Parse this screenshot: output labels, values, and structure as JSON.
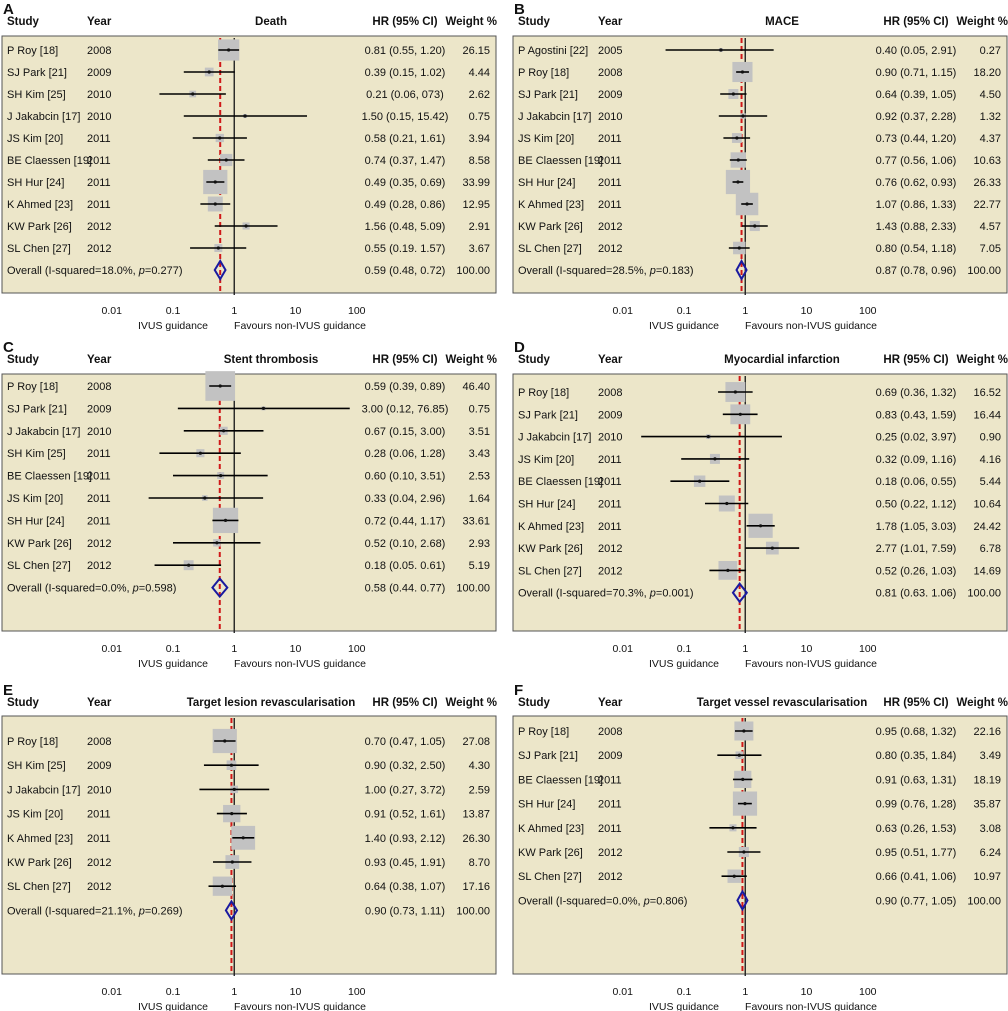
{
  "figure": {
    "axis_ticks": [
      "0.01",
      "0.1",
      "1",
      "10",
      "100"
    ],
    "axis_labels": {
      "left": "IVUS guidance",
      "right": "Favours non-IVUS guidance"
    },
    "colors": {
      "panel_bg": "#ece6c9",
      "panel_border": "#555555",
      "box": "#c2c2c2",
      "null_line": "#222222",
      "overall_line": "#d01818",
      "diamond": "#1a1aa0"
    }
  },
  "chart_data": [
    {
      "type": "forest",
      "letter": "A",
      "outcome": "Death",
      "columns": {
        "study": "Study",
        "year": "Year",
        "hr": "HR (95% CI)",
        "weight": "Weight %"
      },
      "xscale": "log",
      "xlim": [
        0.01,
        100
      ],
      "rows": [
        {
          "study": "P Roy [18]",
          "year": "2008",
          "hr": 0.81,
          "lo": 0.55,
          "hi": 1.2,
          "ci_text": "0.81 (0.55, 1.20)",
          "weight": "26.15"
        },
        {
          "study": "SJ Park [21]",
          "year": "2009",
          "hr": 0.39,
          "lo": 0.15,
          "hi": 1.02,
          "ci_text": "0.39 (0.15, 1.02)",
          "weight": "4.44"
        },
        {
          "study": "SH Kim [25]",
          "year": "2010",
          "hr": 0.21,
          "lo": 0.06,
          "hi": 0.73,
          "ci_text": "0.21 (0.06, 073)",
          "weight": "2.62"
        },
        {
          "study": "J Jakabcin [17]",
          "year": "2010",
          "hr": 1.5,
          "lo": 0.15,
          "hi": 15.42,
          "ci_text": "1.50 (0.15, 15.42)",
          "weight": "0.75"
        },
        {
          "study": "JS Kim [20]",
          "year": "2011",
          "hr": 0.58,
          "lo": 0.21,
          "hi": 1.61,
          "ci_text": "0.58 (0.21, 1.61)",
          "weight": "3.94"
        },
        {
          "study": "BE Claessen [19]",
          "year": "2011",
          "hr": 0.74,
          "lo": 0.37,
          "hi": 1.47,
          "ci_text": "0.74 (0.37, 1.47)",
          "weight": "8.58"
        },
        {
          "study": "SH Hur [24]",
          "year": "2011",
          "hr": 0.49,
          "lo": 0.35,
          "hi": 0.69,
          "ci_text": "0.49 (0.35, 0.69)",
          "weight": "33.99"
        },
        {
          "study": "K Ahmed [23]",
          "year": "2011",
          "hr": 0.49,
          "lo": 0.28,
          "hi": 0.86,
          "ci_text": "0.49 (0.28, 0.86)",
          "weight": "12.95"
        },
        {
          "study": "KW Park [26]",
          "year": "2012",
          "hr": 1.56,
          "lo": 0.48,
          "hi": 5.09,
          "ci_text": "1.56 (0.48, 5.09)",
          "weight": "2.91"
        },
        {
          "study": "SL Chen [27]",
          "year": "2012",
          "hr": 0.55,
          "lo": 0.19,
          "hi": 1.57,
          "ci_text": "0.55 (0.19. 1.57)",
          "weight": "3.67"
        }
      ],
      "overall": {
        "label": "Overall (I-squared=18.0%, ",
        "p_label": "p",
        "p_value": "=0.277)",
        "hr": 0.59,
        "lo": 0.48,
        "hi": 0.72,
        "ci_text": "0.59 (0.48, 0.72)",
        "weight": "100.00"
      }
    },
    {
      "type": "forest",
      "letter": "B",
      "outcome": "MACE",
      "columns": {
        "study": "Study",
        "year": "Year",
        "hr": "HR (95% CI)",
        "weight": "Weight %"
      },
      "xscale": "log",
      "xlim": [
        0.01,
        100
      ],
      "rows": [
        {
          "study": "P Agostini [22]",
          "year": "2005",
          "hr": 0.4,
          "lo": 0.05,
          "hi": 2.91,
          "ci_text": "0.40 (0.05, 2.91)",
          "weight": "0.27"
        },
        {
          "study": "P Roy [18]",
          "year": "2008",
          "hr": 0.9,
          "lo": 0.71,
          "hi": 1.15,
          "ci_text": "0.90 (0.71, 1.15)",
          "weight": "18.20"
        },
        {
          "study": "SJ Park [21]",
          "year": "2009",
          "hr": 0.64,
          "lo": 0.39,
          "hi": 1.05,
          "ci_text": "0.64 (0.39, 1.05)",
          "weight": "4.50"
        },
        {
          "study": "J Jakabcin [17]",
          "year": "2010",
          "hr": 0.92,
          "lo": 0.37,
          "hi": 2.28,
          "ci_text": "0.92 (0.37, 2.28)",
          "weight": "1.32"
        },
        {
          "study": "JS Kim [20]",
          "year": "2011",
          "hr": 0.73,
          "lo": 0.44,
          "hi": 1.2,
          "ci_text": "0.73 (0.44, 1.20)",
          "weight": "4.37"
        },
        {
          "study": "BE Claessen [19]",
          "year": "2011",
          "hr": 0.77,
          "lo": 0.56,
          "hi": 1.06,
          "ci_text": "0.77 (0.56, 1.06)",
          "weight": "10.63"
        },
        {
          "study": "SH Hur [24]",
          "year": "2011",
          "hr": 0.76,
          "lo": 0.62,
          "hi": 0.93,
          "ci_text": "0.76 (0.62, 0.93)",
          "weight": "26.33"
        },
        {
          "study": "K Ahmed [23]",
          "year": "2011",
          "hr": 1.07,
          "lo": 0.86,
          "hi": 1.33,
          "ci_text": "1.07 (0.86, 1.33)",
          "weight": "22.77"
        },
        {
          "study": "KW Park [26]",
          "year": "2012",
          "hr": 1.43,
          "lo": 0.88,
          "hi": 2.33,
          "ci_text": "1.43 (0.88, 2.33)",
          "weight": "4.57"
        },
        {
          "study": "SL Chen [27]",
          "year": "2012",
          "hr": 0.8,
          "lo": 0.54,
          "hi": 1.18,
          "ci_text": "0.80 (0.54, 1.18)",
          "weight": "7.05"
        }
      ],
      "overall": {
        "label": "Overall (I-squared=28.5%, ",
        "p_label": "p",
        "p_value": "=0.183)",
        "hr": 0.87,
        "lo": 0.78,
        "hi": 0.96,
        "ci_text": "0.87 (0.78, 0.96)",
        "weight": "100.00"
      }
    },
    {
      "type": "forest",
      "letter": "C",
      "outcome": "Stent thrombosis",
      "columns": {
        "study": "Study",
        "year": "Year",
        "hr": "HR (95% CI)",
        "weight": "Weight %"
      },
      "xscale": "log",
      "xlim": [
        0.01,
        100
      ],
      "rows": [
        {
          "study": "P Roy [18]",
          "year": "2008",
          "hr": 0.59,
          "lo": 0.39,
          "hi": 0.89,
          "ci_text": "0.59 (0.39, 0.89)",
          "weight": "46.40"
        },
        {
          "study": "SJ Park [21]",
          "year": "2009",
          "hr": 3.0,
          "lo": 0.12,
          "hi": 76.85,
          "ci_text": "3.00 (0.12, 76.85)",
          "weight": "0.75"
        },
        {
          "study": "J Jakabcin [17]",
          "year": "2010",
          "hr": 0.67,
          "lo": 0.15,
          "hi": 3.0,
          "ci_text": "0.67 (0.15, 3.00)",
          "weight": "3.51"
        },
        {
          "study": "SH Kim [25]",
          "year": "2011",
          "hr": 0.28,
          "lo": 0.06,
          "hi": 1.28,
          "ci_text": "0.28 (0.06, 1.28)",
          "weight": "3.43"
        },
        {
          "study": "BE Claessen [19]",
          "year": "2011",
          "hr": 0.6,
          "lo": 0.1,
          "hi": 3.51,
          "ci_text": "0.60 (0.10, 3.51)",
          "weight": "2.53"
        },
        {
          "study": "JS Kim [20]",
          "year": "2011",
          "hr": 0.33,
          "lo": 0.04,
          "hi": 2.96,
          "ci_text": "0.33 (0.04, 2.96)",
          "weight": "1.64"
        },
        {
          "study": "SH Hur [24]",
          "year": "2011",
          "hr": 0.72,
          "lo": 0.44,
          "hi": 1.17,
          "ci_text": "0.72 (0.44, 1.17)",
          "weight": "33.61"
        },
        {
          "study": "KW Park [26]",
          "year": "2012",
          "hr": 0.52,
          "lo": 0.1,
          "hi": 2.68,
          "ci_text": "0.52 (0.10, 2.68)",
          "weight": "2.93"
        },
        {
          "study": "SL Chen [27]",
          "year": "2012",
          "hr": 0.18,
          "lo": 0.05,
          "hi": 0.61,
          "ci_text": "0.18 (0.05. 0.61)",
          "weight": "5.19"
        }
      ],
      "overall": {
        "label": "Overall (I-squared=0.0%, ",
        "p_label": "p",
        "p_value": "=0.598)",
        "hr": 0.58,
        "lo": 0.44,
        "hi": 0.77,
        "ci_text": "0.58 (0.44. 0.77)",
        "weight": "100.00"
      }
    },
    {
      "type": "forest",
      "letter": "D",
      "outcome": "Myocardial infarction",
      "columns": {
        "study": "Study",
        "year": "Year",
        "hr": "HR (95% CI)",
        "weight": "Weight %"
      },
      "xscale": "log",
      "xlim": [
        0.01,
        100
      ],
      "rows": [
        {
          "study": "P Roy [18]",
          "year": "2008",
          "hr": 0.69,
          "lo": 0.36,
          "hi": 1.32,
          "ci_text": "0.69 (0.36, 1.32)",
          "weight": "16.52"
        },
        {
          "study": "SJ Park [21]",
          "year": "2009",
          "hr": 0.83,
          "lo": 0.43,
          "hi": 1.59,
          "ci_text": "0.83 (0.43, 1.59)",
          "weight": "16.44"
        },
        {
          "study": "J Jakabcin [17]",
          "year": "2010",
          "hr": 0.25,
          "lo": 0.02,
          "hi": 3.97,
          "ci_text": "0.25 (0.02, 3.97)",
          "weight": "0.90"
        },
        {
          "study": "JS Kim [20]",
          "year": "2011",
          "hr": 0.32,
          "lo": 0.09,
          "hi": 1.16,
          "ci_text": "0.32 (0.09, 1.16)",
          "weight": "4.16"
        },
        {
          "study": "BE Claessen [19]",
          "year": "2011",
          "hr": 0.18,
          "lo": 0.06,
          "hi": 0.55,
          "ci_text": "0.18 (0.06, 0.55)",
          "weight": "5.44"
        },
        {
          "study": "SH Hur [24]",
          "year": "2011",
          "hr": 0.5,
          "lo": 0.22,
          "hi": 1.12,
          "ci_text": "0.50 (0.22, 1.12)",
          "weight": "10.64"
        },
        {
          "study": "K Ahmed [23]",
          "year": "2011",
          "hr": 1.78,
          "lo": 1.05,
          "hi": 3.03,
          "ci_text": "1.78 (1.05, 3.03)",
          "weight": "24.42"
        },
        {
          "study": "KW Park [26]",
          "year": "2012",
          "hr": 2.77,
          "lo": 1.01,
          "hi": 7.59,
          "ci_text": "2.77 (1.01, 7.59)",
          "weight": "6.78"
        },
        {
          "study": "SL Chen [27]",
          "year": "2012",
          "hr": 0.52,
          "lo": 0.26,
          "hi": 1.03,
          "ci_text": "0.52 (0.26, 1.03)",
          "weight": "14.69"
        }
      ],
      "overall": {
        "label": "Overall (I-squared=70.3%, ",
        "p_label": "p",
        "p_value": "=0.001)",
        "hr": 0.81,
        "lo": 0.63,
        "hi": 1.06,
        "ci_text": "0.81 (0.63. 1.06)",
        "weight": "100.00"
      }
    },
    {
      "type": "forest",
      "letter": "E",
      "outcome": "Target lesion revascularisation",
      "columns": {
        "study": "Study",
        "year": "Year",
        "hr": "HR (95% CI)",
        "weight": "Weight %"
      },
      "xscale": "log",
      "xlim": [
        0.01,
        100
      ],
      "rows": [
        {
          "study": "P Roy [18]",
          "year": "2008",
          "hr": 0.7,
          "lo": 0.47,
          "hi": 1.05,
          "ci_text": "0.70 (0.47, 1.05)",
          "weight": "27.08"
        },
        {
          "study": "SH Kim [25]",
          "year": "2009",
          "hr": 0.9,
          "lo": 0.32,
          "hi": 2.5,
          "ci_text": "0.90 (0.32, 2.50)",
          "weight": "4.30"
        },
        {
          "study": "J Jakabcin [17]",
          "year": "2010",
          "hr": 1.0,
          "lo": 0.27,
          "hi": 3.72,
          "ci_text": "1.00 (0.27, 3.72)",
          "weight": "2.59"
        },
        {
          "study": "JS Kim [20]",
          "year": "2011",
          "hr": 0.91,
          "lo": 0.52,
          "hi": 1.61,
          "ci_text": "0.91 (0.52, 1.61)",
          "weight": "13.87"
        },
        {
          "study": "K Ahmed [23]",
          "year": "2011",
          "hr": 1.4,
          "lo": 0.93,
          "hi": 2.12,
          "ci_text": "1.40 (0.93, 2.12)",
          "weight": "26.30"
        },
        {
          "study": "KW Park [26]",
          "year": "2012",
          "hr": 0.93,
          "lo": 0.45,
          "hi": 1.91,
          "ci_text": "0.93 (0.45, 1.91)",
          "weight": "8.70"
        },
        {
          "study": "SL Chen [27]",
          "year": "2012",
          "hr": 0.64,
          "lo": 0.38,
          "hi": 1.07,
          "ci_text": "0.64 (0.38, 1.07)",
          "weight": "17.16"
        }
      ],
      "overall": {
        "label": "Overall (I-squared=21.1%, ",
        "p_label": "p",
        "p_value": "=0.269)",
        "hr": 0.9,
        "lo": 0.73,
        "hi": 1.11,
        "ci_text": "0.90 (0.73, 1.11)",
        "weight": "100.00"
      }
    },
    {
      "type": "forest",
      "letter": "F",
      "outcome": "Target vessel  revascularisation",
      "columns": {
        "study": "Study",
        "year": "Year",
        "hr": "HR (95% CI)",
        "weight": "Weight %"
      },
      "xscale": "log",
      "xlim": [
        0.01,
        100
      ],
      "rows": [
        {
          "study": "P Roy [18]",
          "year": "2008",
          "hr": 0.95,
          "lo": 0.68,
          "hi": 1.32,
          "ci_text": "0.95 (0.68, 1.32)",
          "weight": "22.16"
        },
        {
          "study": "SJ Park [21]",
          "year": "2009",
          "hr": 0.8,
          "lo": 0.35,
          "hi": 1.84,
          "ci_text": "0.80 (0.35, 1.84)",
          "weight": "3.49"
        },
        {
          "study": "BE Claessen [19]",
          "year": "2011",
          "hr": 0.91,
          "lo": 0.63,
          "hi": 1.31,
          "ci_text": "0.91 (0.63, 1.31)",
          "weight": "18.19"
        },
        {
          "study": "SH Hur [24]",
          "year": "2011",
          "hr": 0.99,
          "lo": 0.76,
          "hi": 1.28,
          "ci_text": "0.99 (0.76, 1.28)",
          "weight": "35.87"
        },
        {
          "study": "K Ahmed [23]",
          "year": "2011",
          "hr": 0.63,
          "lo": 0.26,
          "hi": 1.53,
          "ci_text": "0.63 (0.26, 1.53)",
          "weight": "3.08"
        },
        {
          "study": "KW Park [26]",
          "year": "2012",
          "hr": 0.95,
          "lo": 0.51,
          "hi": 1.77,
          "ci_text": "0.95 (0.51, 1.77)",
          "weight": "6.24"
        },
        {
          "study": "SL Chen [27]",
          "year": "2012",
          "hr": 0.66,
          "lo": 0.41,
          "hi": 1.06,
          "ci_text": "0.66 (0.41, 1.06)",
          "weight": "10.97"
        }
      ],
      "overall": {
        "label": "Overall (I-squared=0.0%, ",
        "p_label": "p",
        "p_value": "=0.806)",
        "hr": 0.9,
        "lo": 0.77,
        "hi": 1.05,
        "ci_text": "0.90 (0.77, 1.05)",
        "weight": "100.00"
      }
    }
  ]
}
